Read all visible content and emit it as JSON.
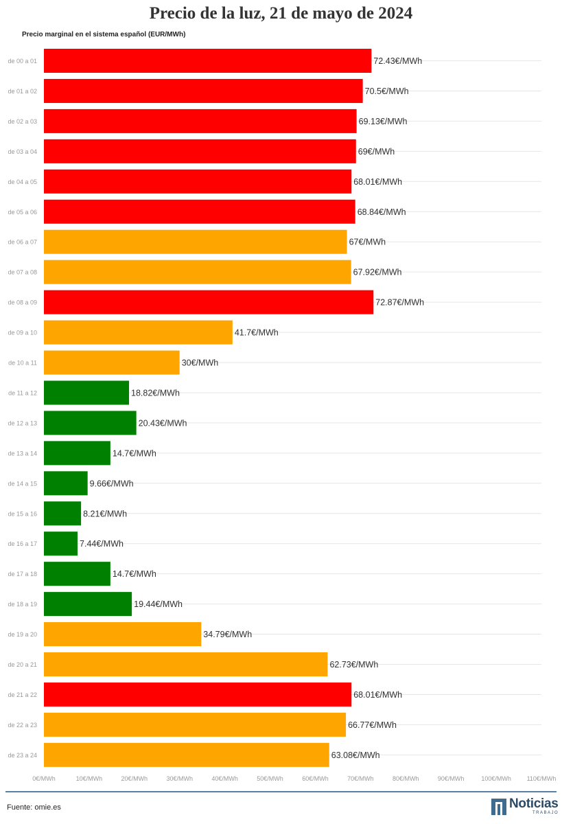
{
  "header": {
    "title": "Precio de la luz, 21 de mayo de 2024",
    "subtitle": "Precio marginal en el sistema español (EUR/MWh)"
  },
  "footer": {
    "source": "Fuente: omie.es",
    "logo_text": "Noticias",
    "logo_subtext": "TRABAJO"
  },
  "colors": {
    "red": "#ff0000",
    "orange": "#ffa500",
    "green": "#008000",
    "grid": "#e6e6e6",
    "hour_label": "#999999",
    "value_label": "#333333"
  },
  "chart_data": {
    "type": "bar",
    "orientation": "horizontal",
    "title": "Precio de la luz, 21 de mayo de 2024",
    "subtitle": "Precio marginal en el sistema español (EUR/MWh)",
    "xlim": [
      0,
      110
    ],
    "xticks": [
      0,
      10,
      20,
      30,
      40,
      50,
      60,
      70,
      80,
      90,
      100,
      110
    ],
    "xtick_labels": [
      "0€/MWh",
      "10€/MWh",
      "20€/MWh",
      "30€/MWh",
      "40€/MWh",
      "50€/MWh",
      "60€/MWh",
      "70€/MWh",
      "80€/MWh",
      "90€/MWh",
      "100€/MWh",
      "110€/MWh"
    ],
    "grid": true,
    "categories": [
      "de 00 a 01",
      "de 01 a 02",
      "de 02 a 03",
      "de 03 a 04",
      "de 04 a 05",
      "de 05 a 06",
      "de 06 a 07",
      "de 07 a 08",
      "de 08 a 09",
      "de 09 a 10",
      "de 10 a 11",
      "de 11 a 12",
      "de 12 a 13",
      "de 13 a 14",
      "de 14 a 15",
      "de 15 a 16",
      "de 16 a 17",
      "de 17 a 18",
      "de 18 a 19",
      "de 19 a 20",
      "de 20 a 21",
      "de 21 a 22",
      "de 22 a 23",
      "de 23 a 24"
    ],
    "values": [
      72.43,
      70.5,
      69.13,
      69,
      68.01,
      68.84,
      67,
      67.92,
      72.87,
      41.7,
      30,
      18.82,
      20.43,
      14.7,
      9.66,
      8.21,
      7.44,
      14.7,
      19.44,
      34.79,
      62.73,
      68.01,
      66.77,
      63.08
    ],
    "value_labels": [
      "72.43€/MWh",
      "70.5€/MWh",
      "69.13€/MWh",
      "69€/MWh",
      "68.01€/MWh",
      "68.84€/MWh",
      "67€/MWh",
      "67.92€/MWh",
      "72.87€/MWh",
      "41.7€/MWh",
      "30€/MWh",
      "18.82€/MWh",
      "20.43€/MWh",
      "14.7€/MWh",
      "9.66€/MWh",
      "8.21€/MWh",
      "7.44€/MWh",
      "14.7€/MWh",
      "19.44€/MWh",
      "34.79€/MWh",
      "62.73€/MWh",
      "68.01€/MWh",
      "66.77€/MWh",
      "63.08€/MWh"
    ],
    "bar_colors": [
      "red",
      "red",
      "red",
      "red",
      "red",
      "red",
      "orange",
      "orange",
      "red",
      "orange",
      "orange",
      "green",
      "green",
      "green",
      "green",
      "green",
      "green",
      "green",
      "green",
      "orange",
      "orange",
      "red",
      "orange",
      "orange"
    ]
  }
}
